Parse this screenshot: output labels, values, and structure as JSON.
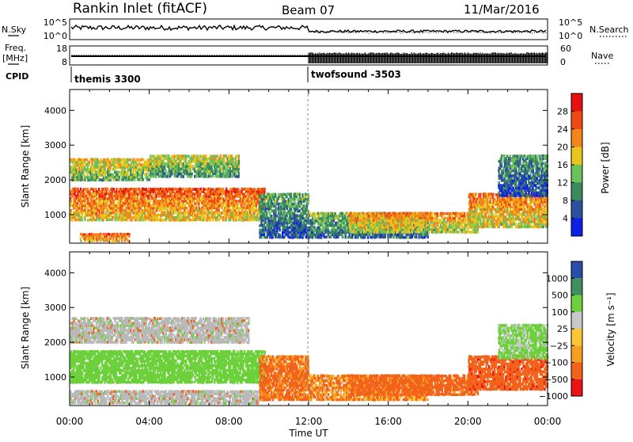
{
  "header": {
    "station": "Rankin Inlet (fitACF)",
    "beam": "Beam 07",
    "date": "11/Mar/2016"
  },
  "strip_labels": {
    "nsky": "N.Sky",
    "nsky_ticks": [
      "10^5",
      "10^0"
    ],
    "nsearch": "N.Search",
    "nsearch_ticks": [
      "10^5",
      "10^0"
    ],
    "freq_line1": "Freq.",
    "freq_line2": "[MHz]",
    "freq_ticks": [
      "18",
      "8"
    ],
    "nave": "Nave",
    "nave_ticks": [
      "60",
      "0"
    ],
    "cpid": "CPID",
    "cpid_segments": [
      {
        "label": "themis 3300",
        "start_hour": 0,
        "end_hour": 12
      },
      {
        "label": "twofsound -3503",
        "start_hour": 12,
        "end_hour": 24
      }
    ]
  },
  "colors": {
    "power_scale": [
      "#0b22e6",
      "#2c4f9e",
      "#3b8a5e",
      "#6cc15a",
      "#e8c51c",
      "#f2861a",
      "#ef4a16",
      "#e61010"
    ],
    "velocity_scale": [
      "#ee1111",
      "#f2621a",
      "#f79f1f",
      "#fcc536",
      "#c8c8c8",
      "#6cd03a",
      "#3f8f60",
      "#2a4da8"
    ],
    "ground_scatter": "#b9b9b9"
  },
  "chart_data": [
    {
      "type": "heatmap",
      "title": "Power",
      "ylabel": "Slant Range [km]",
      "xlabel": "Time UT",
      "xlim_hours": [
        0,
        24
      ],
      "ylim": [
        180,
        4600
      ],
      "x_ticks": [
        "00:00",
        "04:00",
        "08:00",
        "12:00",
        "16:00",
        "20:00",
        "00:00"
      ],
      "y_ticks": [
        1000,
        2000,
        3000,
        4000
      ],
      "colorbar_label": "Power [dB]",
      "colorbar_ticks": [
        "4",
        "8",
        "12",
        "16",
        "20",
        "24",
        "28"
      ],
      "colorbar_range": [
        0,
        32
      ],
      "bands": [
        {
          "t0": 0,
          "t1": 9.8,
          "r0": 800,
          "r1": 1750,
          "v": 23
        },
        {
          "t0": 0,
          "t1": 4,
          "r0": 1950,
          "r1": 2600,
          "v": 17
        },
        {
          "t0": 4,
          "t1": 8.5,
          "r0": 2050,
          "r1": 2700,
          "v": 15
        },
        {
          "t0": 9.5,
          "t1": 12,
          "r0": 300,
          "r1": 1600,
          "v": 10
        },
        {
          "t0": 12,
          "t1": 18,
          "r0": 300,
          "r1": 1050,
          "v": 12
        },
        {
          "t0": 14,
          "t1": 20.5,
          "r0": 450,
          "r1": 1050,
          "v": 20
        },
        {
          "t0": 20,
          "t1": 24,
          "r0": 600,
          "r1": 1600,
          "v": 21
        },
        {
          "t0": 21.5,
          "t1": 24,
          "r0": 1500,
          "r1": 2700,
          "v": 9
        },
        {
          "t0": 0.5,
          "t1": 3,
          "r0": 200,
          "r1": 450,
          "v": 24
        }
      ]
    },
    {
      "type": "heatmap",
      "title": "Velocity",
      "ylabel": "Slant Range [km]",
      "xlabel": "Time UT",
      "xlim_hours": [
        0,
        24
      ],
      "ylim": [
        180,
        4600
      ],
      "x_ticks": [
        "00:00",
        "04:00",
        "08:00",
        "12:00",
        "16:00",
        "20:00",
        "00:00"
      ],
      "y_ticks": [
        1000,
        2000,
        3000,
        4000
      ],
      "colorbar_label": "Velocity [m s⁻¹]",
      "colorbar_ticks": [
        "1000",
        "500",
        "100",
        "25",
        "−25",
        "−100",
        "−500",
        "−1000"
      ],
      "bands": [
        {
          "t0": 0,
          "t1": 9.8,
          "r0": 800,
          "r1": 1750,
          "v": 300
        },
        {
          "t0": 0,
          "t1": 9,
          "r0": 1950,
          "r1": 2700,
          "v": 0
        },
        {
          "t0": 9.5,
          "t1": 12,
          "r0": 300,
          "r1": 1600,
          "v": -150
        },
        {
          "t0": 12,
          "t1": 18,
          "r0": 300,
          "r1": 1050,
          "v": -90
        },
        {
          "t0": 14,
          "t1": 20.5,
          "r0": 450,
          "r1": 1050,
          "v": -200
        },
        {
          "t0": 20,
          "t1": 24,
          "r0": 600,
          "r1": 1600,
          "v": -400
        },
        {
          "t0": 21.5,
          "t1": 24,
          "r0": 1500,
          "r1": 2500,
          "v": 150
        },
        {
          "t0": 0,
          "t1": 9.5,
          "r0": 200,
          "r1": 600,
          "v": 0
        }
      ]
    }
  ]
}
